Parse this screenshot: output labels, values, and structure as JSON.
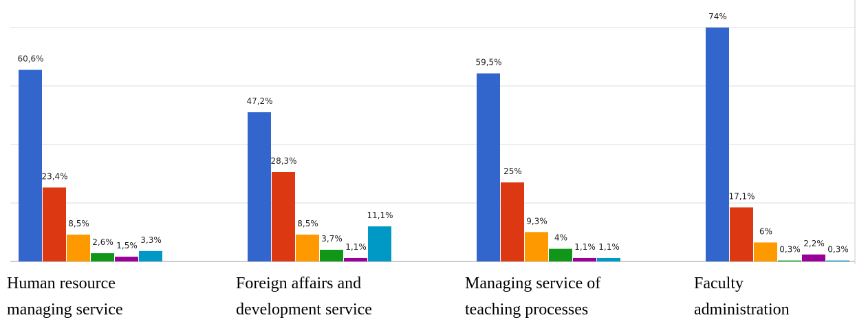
{
  "chart_data": {
    "type": "bar",
    "categories": [
      "Human resource\nmanaging service",
      "Foreign affairs and\ndevelopment service",
      "Managing service of\nteaching processes",
      "Faculty\nadministration"
    ],
    "series": [
      {
        "color": "#3366cc",
        "values": [
          60.6,
          47.2,
          59.5,
          74
        ],
        "value_labels": [
          "60,6%",
          "47,2%",
          "59,5%",
          "74%"
        ]
      },
      {
        "color": "#dc3912",
        "values": [
          23.4,
          28.3,
          25,
          17.1
        ],
        "value_labels": [
          "23,4%",
          "28,3%",
          "25%",
          "17,1%"
        ]
      },
      {
        "color": "#ff9900",
        "values": [
          8.5,
          8.5,
          9.3,
          6
        ],
        "value_labels": [
          "8,5%",
          "8,5%",
          "9,3%",
          "6%"
        ]
      },
      {
        "color": "#109618",
        "values": [
          2.6,
          3.7,
          4,
          0.3
        ],
        "value_labels": [
          "2,6%",
          "3,7%",
          "4%",
          "0,3%"
        ]
      },
      {
        "color": "#990099",
        "values": [
          1.5,
          1.1,
          1.1,
          2.2
        ],
        "value_labels": [
          "1,5%",
          "1,1%",
          "1,1%",
          "2,2%"
        ]
      },
      {
        "color": "#0099c6",
        "values": [
          3.3,
          11.1,
          1.1,
          0.3
        ],
        "value_labels": [
          "3,3%",
          "11,1%",
          "1,1%",
          "0,3%"
        ]
      }
    ],
    "ylim": [
      0,
      74
    ],
    "grid_lines": [
      18.5,
      37,
      55.5,
      74
    ]
  }
}
